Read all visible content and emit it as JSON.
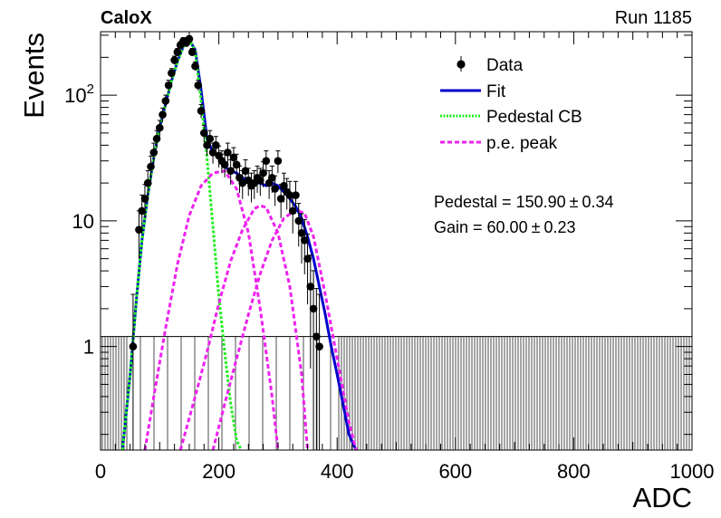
{
  "chart_data": {
    "type": "scatter",
    "header_left": "CaloX",
    "header_right": "Run 1185",
    "xlabel": "ADC",
    "ylabel": "Events",
    "xlim": [
      0,
      1000
    ],
    "ylim": [
      0.15,
      320
    ],
    "log_y": true,
    "x_tick_labels": [
      "0",
      "200",
      "400",
      "600",
      "800",
      "1000"
    ],
    "x_tick_values": [
      0,
      200,
      400,
      600,
      800,
      1000
    ],
    "y_tick_labels": [
      {
        "value": 1,
        "mantissa": "1",
        "exp": ""
      },
      {
        "value": 10,
        "mantissa": "10",
        "exp": ""
      },
      {
        "value": 100,
        "mantissa": "10",
        "exp": "2"
      }
    ],
    "legend_position": "top-right",
    "legend": [
      {
        "label": "Data",
        "style": "marker",
        "color": "#000000"
      },
      {
        "label": "Fit",
        "style": "solid",
        "color": "#0000cc"
      },
      {
        "label": "Pedestal CB",
        "style": "dotted",
        "color": "#22ee22"
      },
      {
        "label": "p.e. peak",
        "style": "dashed",
        "color": "#ee22ee"
      }
    ],
    "annotations": [
      {
        "key": "pedestal",
        "label": "Pedestal = 150.90",
        "pm": "±",
        "error": "0.34"
      },
      {
        "key": "gain",
        "label": "Gain = 60.00",
        "pm": "±",
        "error": "0.23"
      }
    ],
    "pedestal_mean": 150.9,
    "gain": 60.0,
    "series": [
      {
        "name": "Data",
        "x": [
          55,
          65,
          70,
          75,
          80,
          85,
          90,
          95,
          100,
          105,
          110,
          115,
          120,
          125,
          130,
          135,
          140,
          145,
          150,
          155,
          160,
          165,
          170,
          175,
          180,
          185,
          190,
          195,
          200,
          205,
          210,
          215,
          220,
          225,
          230,
          235,
          240,
          245,
          250,
          255,
          260,
          265,
          270,
          275,
          280,
          285,
          290,
          295,
          300,
          305,
          310,
          315,
          320,
          325,
          330,
          335,
          340,
          345,
          350,
          355,
          360,
          365,
          370
        ],
        "y": [
          1.0,
          8.5,
          12,
          15,
          20,
          27,
          35,
          45,
          55,
          70,
          90,
          120,
          150,
          190,
          220,
          250,
          270,
          260,
          280,
          220,
          170,
          120,
          75,
          50,
          40,
          45,
          35,
          40,
          33,
          30,
          28,
          35,
          25,
          32,
          28,
          22,
          20,
          25,
          21,
          19,
          20,
          22,
          21,
          24,
          30,
          20,
          22,
          18,
          30,
          15,
          19,
          17,
          16,
          12,
          16,
          10,
          8,
          7,
          5,
          3,
          2,
          1.2,
          1.0
        ],
        "color": "#000000"
      },
      {
        "name": "Fit",
        "x": [
          37,
          50,
          60,
          70,
          80,
          90,
          100,
          110,
          120,
          130,
          140,
          150,
          160,
          170,
          180,
          190,
          200,
          210,
          220,
          230,
          240,
          250,
          260,
          270,
          280,
          290,
          300,
          310,
          320,
          330,
          340,
          350,
          360,
          370,
          380,
          390,
          400,
          410,
          420,
          432
        ],
        "y": [
          0.15,
          0.6,
          2.2,
          7,
          16,
          32,
          55,
          85,
          130,
          185,
          245,
          275,
          230,
          110,
          45,
          35,
          33,
          27,
          25,
          24,
          22,
          21,
          20,
          20,
          19,
          20,
          19,
          17,
          15,
          13,
          10.5,
          7.5,
          5,
          3,
          1.8,
          1.0,
          0.6,
          0.35,
          0.2,
          0.15
        ],
        "color": "#0000cc"
      },
      {
        "name": "Pedestal CB",
        "x": [
          37,
          50,
          60,
          70,
          80,
          90,
          100,
          110,
          120,
          130,
          140,
          150,
          160,
          170,
          180,
          190,
          200,
          210,
          220,
          230,
          238
        ],
        "y": [
          0.15,
          0.6,
          2.2,
          7,
          16,
          32,
          55,
          85,
          130,
          185,
          245,
          275,
          225,
          90,
          32,
          9,
          2.5,
          0.9,
          0.35,
          0.18,
          0.15
        ],
        "color": "#22ee22"
      },
      {
        "name": "p.e. peak 1",
        "x": [
          75,
          90,
          110,
          130,
          150,
          170,
          190,
          210,
          230,
          250,
          270,
          290,
          300
        ],
        "y": [
          0.15,
          0.4,
          1.4,
          4.5,
          11,
          19,
          24,
          25,
          18,
          8,
          2,
          0.4,
          0.15
        ],
        "color": "#ee22ee"
      },
      {
        "name": "p.e. peak 2",
        "x": [
          135,
          160,
          180,
          200,
          220,
          240,
          260,
          270,
          280,
          300,
          320,
          340,
          350
        ],
        "y": [
          0.15,
          0.4,
          0.9,
          2.2,
          4.8,
          8.5,
          12.5,
          13.2,
          12.8,
          8,
          3,
          0.6,
          0.15
        ],
        "color": "#ee22ee"
      },
      {
        "name": "p.e. peak 3",
        "x": [
          190,
          210,
          230,
          250,
          270,
          290,
          310,
          330,
          345,
          360,
          380,
          400,
          420,
          432
        ],
        "y": [
          0.15,
          0.35,
          0.8,
          1.8,
          3.8,
          7,
          10.5,
          12.2,
          11.5,
          7.5,
          2.6,
          0.8,
          0.25,
          0.15
        ],
        "color": "#ee22ee"
      },
      {
        "name": "Uncertainty band",
        "xmin": 0,
        "xmax": 1000,
        "y": 1.2,
        "hatch_x_excluded": [
          45,
          400
        ],
        "color": "#000000"
      }
    ]
  }
}
